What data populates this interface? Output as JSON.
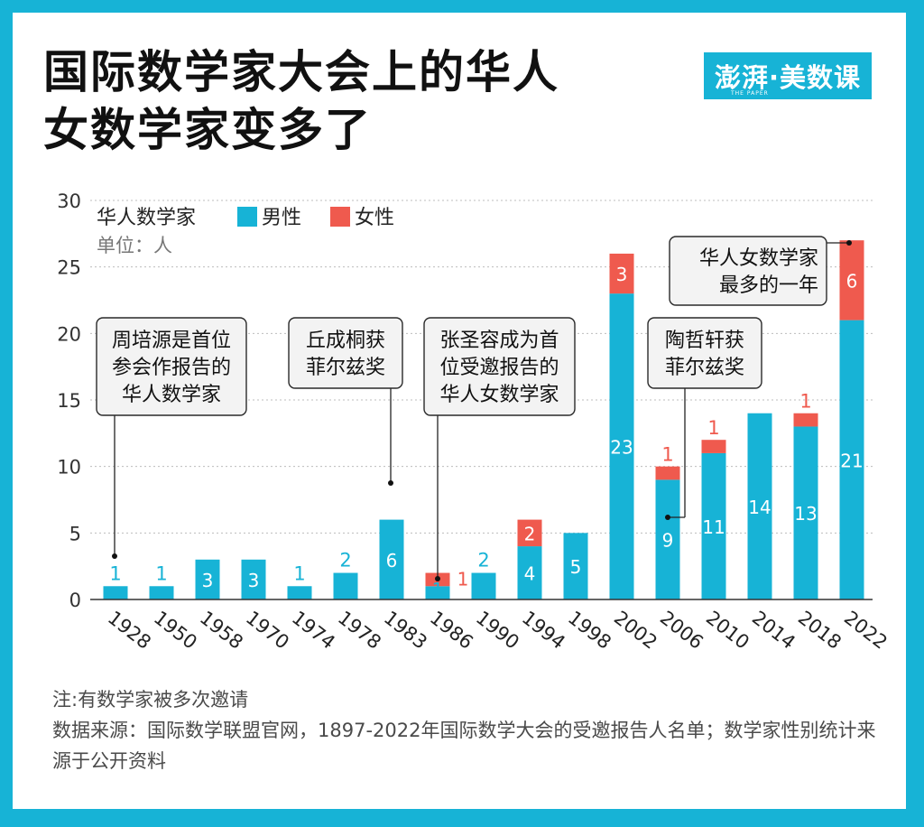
{
  "header": {
    "title_line1": "国际数学家大会上的华人",
    "title_line2": "女数学家变多了",
    "brand": "澎湃·美数课",
    "brand_sub": "THE PAPER"
  },
  "colors": {
    "frame": "#17b3d6",
    "male": "#17b3d6",
    "female": "#ef5a4e"
  },
  "chart_data": {
    "type": "bar",
    "stacked": true,
    "title": "华人数学家",
    "unit": "单位：人",
    "categories": [
      "1928",
      "1950",
      "1958",
      "1970",
      "1974",
      "1978",
      "1983",
      "1986",
      "1990",
      "1994",
      "1998",
      "2002",
      "2006",
      "2010",
      "2014",
      "2018",
      "2022"
    ],
    "series": [
      {
        "name": "男性",
        "color": "#17b3d6",
        "values": [
          1,
          1,
          3,
          3,
          1,
          2,
          6,
          1,
          2,
          4,
          5,
          23,
          9,
          11,
          14,
          13,
          21
        ]
      },
      {
        "name": "女性",
        "color": "#ef5a4e",
        "values": [
          0,
          0,
          0,
          0,
          0,
          0,
          0,
          1,
          0,
          2,
          0,
          3,
          1,
          1,
          0,
          1,
          6
        ]
      }
    ],
    "ylim": [
      0,
      30
    ],
    "yticks": [
      0,
      5,
      10,
      15,
      20,
      25,
      30
    ],
    "grid": true,
    "annotations": [
      {
        "lines": [
          "周培源是首位",
          "参会作报告的",
          "华人数学家"
        ],
        "category": "1928"
      },
      {
        "lines": [
          "丘成桐获",
          "菲尔兹奖"
        ],
        "category": "1983"
      },
      {
        "lines": [
          "张圣容成为首",
          "位受邀报告的",
          "华人女数学家"
        ],
        "category": "1986"
      },
      {
        "lines": [
          "陶哲轩获",
          "菲尔兹奖"
        ],
        "category": "2006"
      },
      {
        "lines": [
          "华人女数学家",
          "最多的一年"
        ],
        "category": "2022"
      }
    ]
  },
  "footer": {
    "note": "注:有数学家被多次邀请",
    "source": "数据来源：国际数学联盟官网，1897-2022年国际数学大会的受邀报告人名单；数学家性别统计来源于公开资料"
  }
}
